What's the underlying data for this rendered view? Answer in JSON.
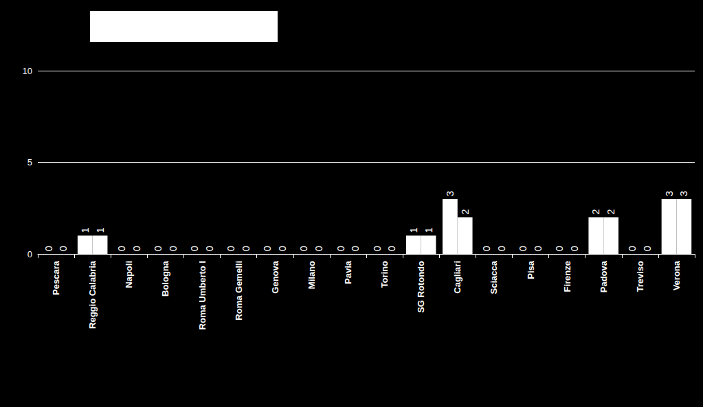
{
  "chart_data": {
    "type": "bar",
    "categories": [
      "Pescara",
      "Reggio Calabria",
      "Napoli",
      "Bologna",
      "Roma Umberto I",
      "Roma Gemelli",
      "Genova",
      "Milano",
      "Pavia",
      "Torino",
      "SG Rotondo",
      "Cagliari",
      "Sciacca",
      "Pisa",
      "Firenze",
      "Padova",
      "Treviso",
      "Verona"
    ],
    "series": [
      {
        "color": "#ffffff",
        "values": [
          0,
          1,
          0,
          0,
          0,
          0,
          0,
          0,
          0,
          0,
          1,
          3,
          0,
          0,
          0,
          2,
          0,
          3
        ]
      },
      {
        "color": "#ffffff",
        "values": [
          0,
          1,
          0,
          0,
          0,
          0,
          0,
          0,
          0,
          0,
          1,
          2,
          0,
          0,
          0,
          2,
          0,
          3
        ]
      }
    ],
    "ylim": [
      0,
      10
    ],
    "yticks": [
      0,
      5,
      10
    ],
    "grid": true,
    "data_labels": true
  }
}
